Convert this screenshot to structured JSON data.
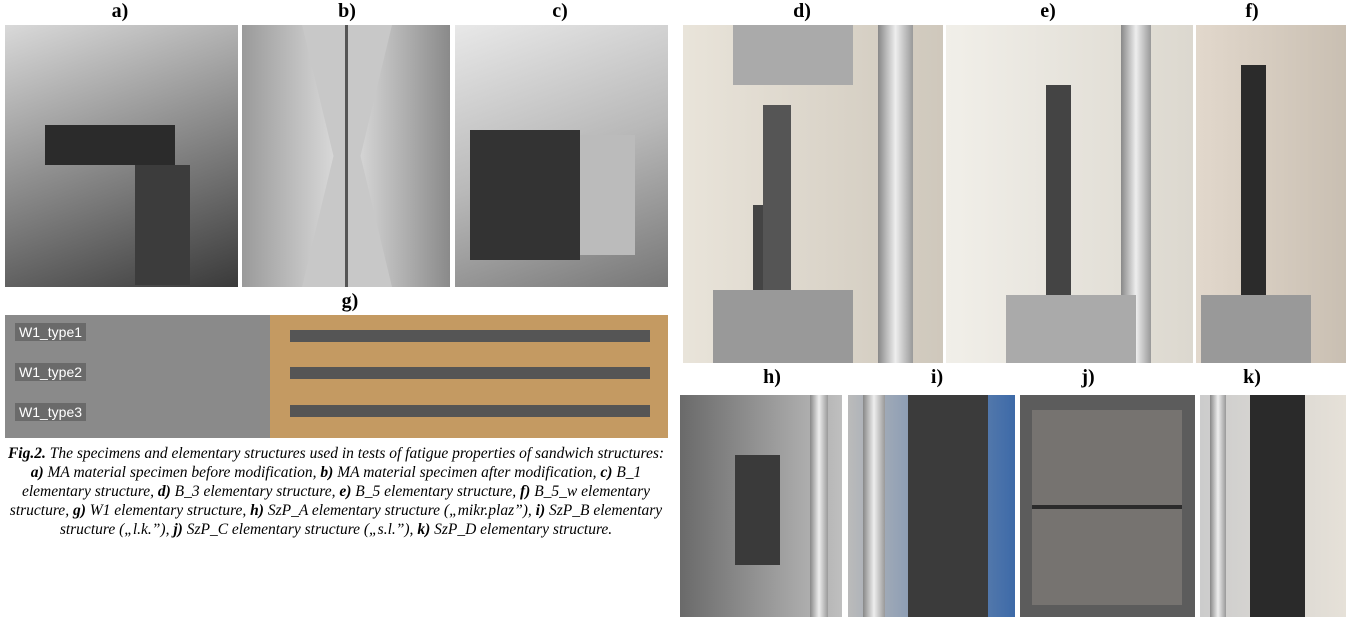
{
  "panels": {
    "a": "a)",
    "b": "b)",
    "c": "c)",
    "d": "d)",
    "e": "e)",
    "f": "f)",
    "g": "g)",
    "h": "h)",
    "i": "i)",
    "j": "j)",
    "k": "k)"
  },
  "specimen_labels": [
    "W1_type1",
    "W1_type2",
    "W1_type3"
  ],
  "caption": {
    "segments": [
      {
        "text": "Fig.2.",
        "bold": true
      },
      {
        "text": " The specimens and elementary structures used in tests of fatigue properties of sandwich structures: ",
        "bold": false
      },
      {
        "text": "a)",
        "bold": true
      },
      {
        "text": " MA material specimen before modification, ",
        "bold": false
      },
      {
        "text": "b)",
        "bold": true
      },
      {
        "text": " MA material specimen after modification, ",
        "bold": false
      },
      {
        "text": "c)",
        "bold": true
      },
      {
        "text": " B_1 elementary structure, ",
        "bold": false
      },
      {
        "text": "d)",
        "bold": true
      },
      {
        "text": " B_3 elementary structure, ",
        "bold": false
      },
      {
        "text": "e)",
        "bold": true
      },
      {
        "text": " B_5 elementary structure, ",
        "bold": false
      },
      {
        "text": "f)",
        "bold": true
      },
      {
        "text": " B_5_w elementary structure, ",
        "bold": false
      },
      {
        "text": "g)",
        "bold": true
      },
      {
        "text": " W1 elementary structure, ",
        "bold": false
      },
      {
        "text": "h)",
        "bold": true
      },
      {
        "text": " SzP_A elementary structure („mikr.plaz”), ",
        "bold": false
      },
      {
        "text": "i)",
        "bold": true
      },
      {
        "text": " SzP_B elementary structure („l.k.”), ",
        "bold": false
      },
      {
        "text": "j)",
        "bold": true
      },
      {
        "text": " SzP_C elementary structure („s.l.”), ",
        "bold": false
      },
      {
        "text": "k)",
        "bold": true
      },
      {
        "text": " SzP_D elementary structure.",
        "bold": false
      }
    ]
  }
}
